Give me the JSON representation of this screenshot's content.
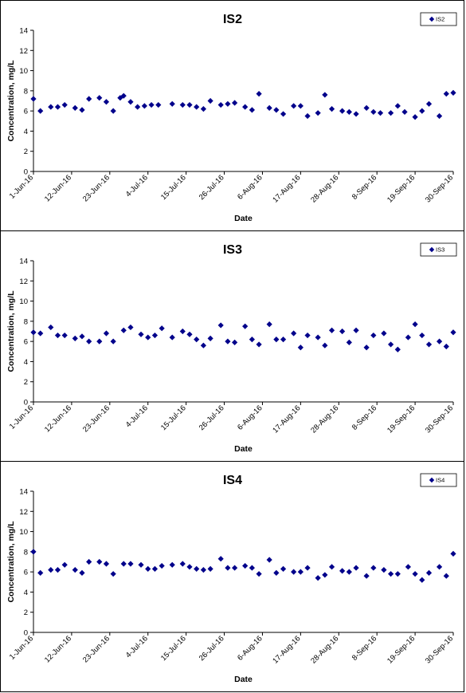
{
  "colors": {
    "marker": "#00008B",
    "axis": "#000000"
  },
  "chart_data": [
    {
      "type": "scatter",
      "title": "IS2",
      "xlabel": "Date",
      "ylabel": "Concentration, mg/L",
      "ylim": [
        0,
        14
      ],
      "yticks": [
        "0",
        "2",
        "4",
        "6",
        "8",
        "10",
        "12",
        "14"
      ],
      "xlim": [
        "2016-06-01",
        "2016-09-30"
      ],
      "xticks": [
        "1-Jun-16",
        "12-Jun-16",
        "23-Jun-16",
        "4-Jul-16",
        "15-Jul-16",
        "26-Jul-16",
        "6-Aug-16",
        "17-Aug-16",
        "28-Aug-16",
        "8-Sep-16",
        "19-Sep-16",
        "30-Sep-16"
      ],
      "legend": {
        "position": "top-right",
        "entries": [
          "IS2"
        ]
      },
      "series": [
        {
          "name": "IS2",
          "marker": "diamond",
          "x": [
            "2016-06-01",
            "2016-06-03",
            "2016-06-06",
            "2016-06-08",
            "2016-06-10",
            "2016-06-13",
            "2016-06-15",
            "2016-06-17",
            "2016-06-20",
            "2016-06-22",
            "2016-06-24",
            "2016-06-26",
            "2016-06-27",
            "2016-06-29",
            "2016-07-01",
            "2016-07-03",
            "2016-07-05",
            "2016-07-07",
            "2016-07-11",
            "2016-07-14",
            "2016-07-16",
            "2016-07-18",
            "2016-07-20",
            "2016-07-22",
            "2016-07-25",
            "2016-07-27",
            "2016-07-29",
            "2016-08-01",
            "2016-08-03",
            "2016-08-05",
            "2016-08-08",
            "2016-08-10",
            "2016-08-12",
            "2016-08-15",
            "2016-08-17",
            "2016-08-19",
            "2016-08-22",
            "2016-08-24",
            "2016-08-26",
            "2016-08-29",
            "2016-08-31",
            "2016-09-02",
            "2016-09-05",
            "2016-09-07",
            "2016-09-09",
            "2016-09-12",
            "2016-09-14",
            "2016-09-16",
            "2016-09-19",
            "2016-09-21",
            "2016-09-23",
            "2016-09-26",
            "2016-09-28",
            "2016-09-30"
          ],
          "y": [
            7.2,
            6.0,
            6.4,
            6.4,
            6.6,
            6.3,
            6.1,
            7.2,
            7.3,
            6.9,
            6.0,
            7.3,
            7.5,
            6.9,
            6.4,
            6.5,
            6.6,
            6.6,
            6.7,
            6.6,
            6.6,
            6.4,
            6.2,
            7.0,
            6.6,
            6.7,
            6.8,
            6.4,
            6.1,
            7.7,
            6.3,
            6.1,
            5.7,
            6.5,
            6.5,
            5.5,
            5.8,
            7.6,
            6.2,
            6.0,
            5.9,
            5.7,
            6.3,
            5.9,
            5.8,
            5.8,
            6.5,
            5.9,
            5.4,
            6.0,
            6.7,
            5.5,
            7.7,
            7.8
          ]
        }
      ]
    },
    {
      "type": "scatter",
      "title": "IS3",
      "xlabel": "Date",
      "ylabel": "Concentration, mg/L",
      "ylim": [
        0,
        14
      ],
      "yticks": [
        "0",
        "2",
        "4",
        "6",
        "8",
        "10",
        "12",
        "14"
      ],
      "xlim": [
        "2016-06-01",
        "2016-09-30"
      ],
      "xticks": [
        "1-Jun-16",
        "12-Jun-16",
        "23-Jun-16",
        "4-Jul-16",
        "15-Jul-16",
        "26-Jul-16",
        "6-Aug-16",
        "17-Aug-16",
        "28-Aug-16",
        "8-Sep-16",
        "19-Sep-16",
        "30-Sep-16"
      ],
      "legend": {
        "position": "top-right",
        "entries": [
          "IS3"
        ]
      },
      "series": [
        {
          "name": "IS3",
          "marker": "diamond",
          "x": [
            "2016-06-01",
            "2016-06-03",
            "2016-06-06",
            "2016-06-08",
            "2016-06-10",
            "2016-06-13",
            "2016-06-15",
            "2016-06-17",
            "2016-06-20",
            "2016-06-22",
            "2016-06-24",
            "2016-06-27",
            "2016-06-29",
            "2016-07-02",
            "2016-07-04",
            "2016-07-06",
            "2016-07-08",
            "2016-07-11",
            "2016-07-14",
            "2016-07-16",
            "2016-07-18",
            "2016-07-20",
            "2016-07-22",
            "2016-07-25",
            "2016-07-27",
            "2016-07-29",
            "2016-08-01",
            "2016-08-03",
            "2016-08-05",
            "2016-08-08",
            "2016-08-10",
            "2016-08-12",
            "2016-08-15",
            "2016-08-17",
            "2016-08-19",
            "2016-08-22",
            "2016-08-24",
            "2016-08-26",
            "2016-08-29",
            "2016-08-31",
            "2016-09-02",
            "2016-09-05",
            "2016-09-07",
            "2016-09-10",
            "2016-09-12",
            "2016-09-14",
            "2016-09-17",
            "2016-09-19",
            "2016-09-21",
            "2016-09-23",
            "2016-09-26",
            "2016-09-28",
            "2016-09-30"
          ],
          "y": [
            6.9,
            6.8,
            7.4,
            6.6,
            6.6,
            6.3,
            6.5,
            6.0,
            6.0,
            6.8,
            6.0,
            7.1,
            7.4,
            6.7,
            6.4,
            6.6,
            7.3,
            6.4,
            7.0,
            6.7,
            6.2,
            5.6,
            6.3,
            7.6,
            6.0,
            5.9,
            7.5,
            6.2,
            5.7,
            7.7,
            6.2,
            6.2,
            6.8,
            5.4,
            6.6,
            6.4,
            5.6,
            7.1,
            7.0,
            5.9,
            7.1,
            5.4,
            6.6,
            6.8,
            5.7,
            5.2,
            6.4,
            7.7,
            6.6,
            5.7,
            6.0,
            5.5,
            6.9
          ]
        }
      ]
    },
    {
      "type": "scatter",
      "title": "IS4",
      "xlabel": "Date",
      "ylabel": "Concentration, mg/L",
      "ylim": [
        0,
        14
      ],
      "yticks": [
        "0",
        "2",
        "4",
        "6",
        "8",
        "10",
        "12",
        "14"
      ],
      "xlim": [
        "2016-06-01",
        "2016-09-30"
      ],
      "xticks": [
        "1-Jun-16",
        "12-Jun-16",
        "23-Jun-16",
        "4-Jul-16",
        "15-Jul-16",
        "26-Jul-16",
        "6-Aug-16",
        "17-Aug-16",
        "28-Aug-16",
        "8-Sep-16",
        "19-Sep-16",
        "30-Sep-16"
      ],
      "legend": {
        "position": "top-right",
        "entries": [
          "IS4"
        ]
      },
      "series": [
        {
          "name": "IS4",
          "marker": "diamond",
          "x": [
            "2016-06-01",
            "2016-06-03",
            "2016-06-06",
            "2016-06-08",
            "2016-06-10",
            "2016-06-13",
            "2016-06-15",
            "2016-06-17",
            "2016-06-20",
            "2016-06-22",
            "2016-06-24",
            "2016-06-27",
            "2016-06-29",
            "2016-07-02",
            "2016-07-04",
            "2016-07-06",
            "2016-07-08",
            "2016-07-11",
            "2016-07-14",
            "2016-07-16",
            "2016-07-18",
            "2016-07-20",
            "2016-07-22",
            "2016-07-25",
            "2016-07-27",
            "2016-07-29",
            "2016-08-01",
            "2016-08-03",
            "2016-08-05",
            "2016-08-08",
            "2016-08-10",
            "2016-08-12",
            "2016-08-15",
            "2016-08-17",
            "2016-08-19",
            "2016-08-22",
            "2016-08-24",
            "2016-08-26",
            "2016-08-29",
            "2016-08-31",
            "2016-09-02",
            "2016-09-05",
            "2016-09-07",
            "2016-09-10",
            "2016-09-12",
            "2016-09-14",
            "2016-09-17",
            "2016-09-19",
            "2016-09-21",
            "2016-09-23",
            "2016-09-26",
            "2016-09-28",
            "2016-09-30"
          ],
          "y": [
            8.0,
            5.9,
            6.2,
            6.2,
            6.7,
            6.2,
            5.9,
            7.0,
            7.0,
            6.8,
            5.8,
            6.8,
            6.8,
            6.7,
            6.3,
            6.3,
            6.6,
            6.7,
            6.8,
            6.5,
            6.3,
            6.2,
            6.3,
            7.3,
            6.4,
            6.4,
            6.6,
            6.4,
            5.8,
            7.2,
            5.9,
            6.3,
            6.0,
            6.0,
            6.4,
            5.4,
            5.7,
            6.5,
            6.1,
            6.0,
            6.4,
            5.6,
            6.4,
            6.2,
            5.8,
            5.8,
            6.5,
            5.8,
            5.2,
            5.9,
            6.5,
            5.6,
            7.8
          ]
        }
      ]
    }
  ]
}
